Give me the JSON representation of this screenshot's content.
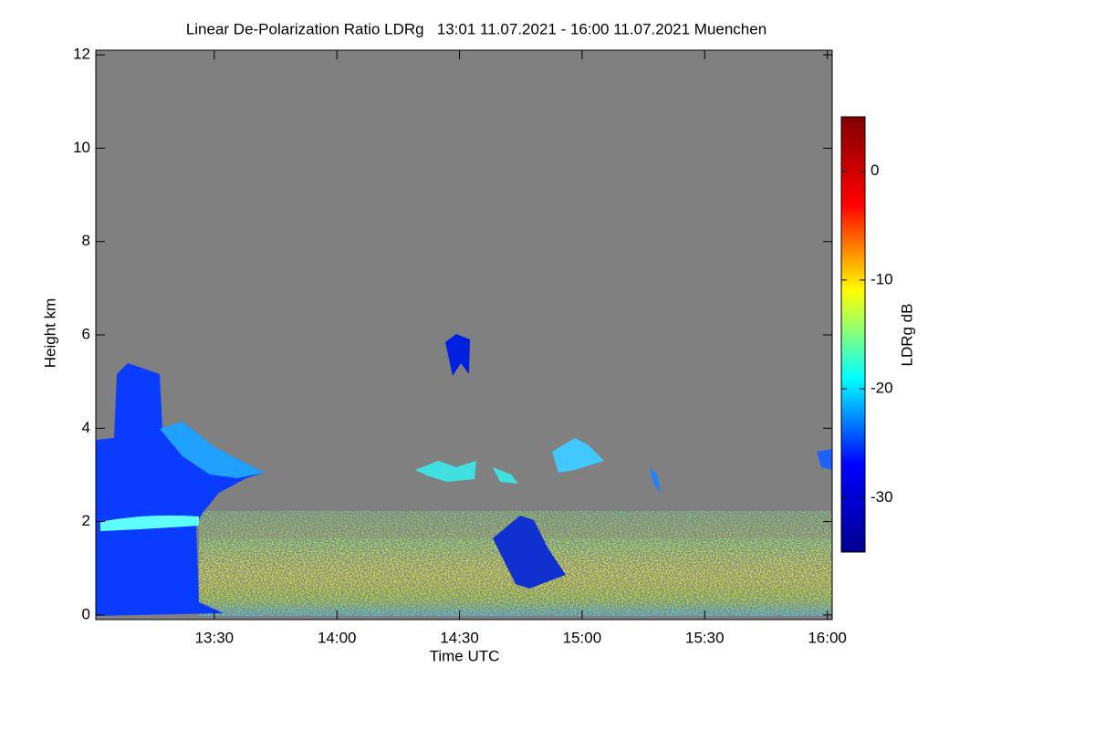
{
  "chart_data": {
    "type": "heatmap",
    "title": "Linear De-Polarization Ratio LDRg   13:01 11.07.2021 - 16:00 11.07.2021 Muenchen",
    "xlabel": "Time UTC",
    "ylabel": "Height km",
    "xlim": [
      13.0167,
      16.02
    ],
    "xticks": [
      {
        "value": 13.5,
        "label": "13:30"
      },
      {
        "value": 14.0,
        "label": "14:00"
      },
      {
        "value": 14.5,
        "label": "14:30"
      },
      {
        "value": 15.0,
        "label": "15:00"
      },
      {
        "value": 15.5,
        "label": "15:30"
      },
      {
        "value": 16.0,
        "label": "16:00"
      }
    ],
    "ylim": [
      -0.1,
      12.1
    ],
    "yticks": [
      0,
      2,
      4,
      6,
      8,
      10,
      12
    ],
    "colorbar": {
      "label": "LDRg dB",
      "lim": [
        -35,
        5
      ],
      "ticks": [
        0,
        -10,
        -20,
        -30
      ],
      "colormap": [
        "#00008f",
        "#0000ff",
        "#00ffff",
        "#ffff00",
        "#ff0000",
        "#800000"
      ]
    },
    "background": "#808080"
  }
}
